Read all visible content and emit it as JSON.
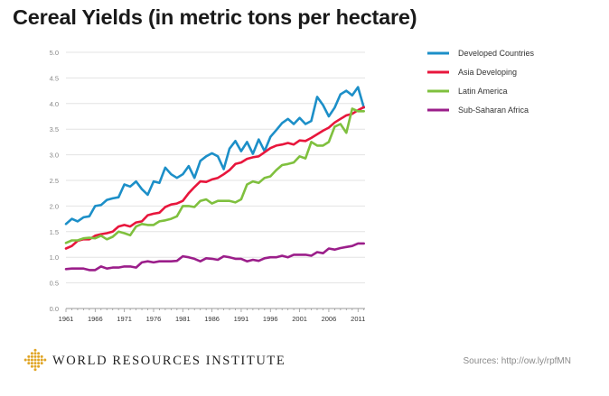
{
  "title": "Cereal Yields (in metric tons per hectare)",
  "footer": {
    "org_name": "WORLD RESOURCES INSTITUTE",
    "source": "Sources: http://ow.ly/rpfMN",
    "logo_icon": "wri-diamond-logo-icon",
    "logo_color": "#E0A526"
  },
  "chart_data": {
    "type": "line",
    "title": "Cereal Yields (in metric tons per hectare)",
    "xlabel": "",
    "ylabel": "",
    "x": [
      1961,
      1962,
      1963,
      1964,
      1965,
      1966,
      1967,
      1968,
      1969,
      1970,
      1971,
      1972,
      1973,
      1974,
      1975,
      1976,
      1977,
      1978,
      1979,
      1980,
      1981,
      1982,
      1983,
      1984,
      1985,
      1986,
      1987,
      1988,
      1989,
      1990,
      1991,
      1992,
      1993,
      1994,
      1995,
      1996,
      1997,
      1998,
      1999,
      2000,
      2001,
      2002,
      2003,
      2004,
      2005,
      2006,
      2007,
      2008,
      2009,
      2010,
      2011,
      2012
    ],
    "xticks": [
      1961,
      1966,
      1971,
      1976,
      1981,
      1986,
      1991,
      1996,
      2001,
      2006,
      2011
    ],
    "yticks": [
      "0.0",
      "0.5",
      "1.0",
      "1.5",
      "2.0",
      "2.5",
      "3.0",
      "3.5",
      "4.0",
      "4.5",
      "5.0"
    ],
    "xlim": [
      1961,
      2012.2
    ],
    "ylim": [
      0,
      5
    ],
    "grid": true,
    "legend_position": "top-right",
    "series": [
      {
        "name": "Developed Countries",
        "color": "#1C8FC8",
        "values": [
          1.65,
          1.75,
          1.7,
          1.78,
          1.8,
          2.0,
          2.02,
          2.12,
          2.15,
          2.17,
          2.42,
          2.38,
          2.48,
          2.33,
          2.22,
          2.48,
          2.45,
          2.75,
          2.62,
          2.55,
          2.62,
          2.78,
          2.55,
          2.88,
          2.97,
          3.03,
          2.97,
          2.72,
          3.12,
          3.27,
          3.07,
          3.25,
          3.02,
          3.3,
          3.07,
          3.35,
          3.48,
          3.62,
          3.7,
          3.6,
          3.72,
          3.6,
          3.66,
          4.13,
          3.97,
          3.75,
          3.92,
          4.18,
          4.25,
          4.16,
          4.32,
          3.92
        ]
      },
      {
        "name": "Asia Developing",
        "color": "#E8163C",
        "values": [
          1.17,
          1.22,
          1.32,
          1.35,
          1.35,
          1.42,
          1.45,
          1.47,
          1.5,
          1.6,
          1.63,
          1.6,
          1.68,
          1.7,
          1.82,
          1.85,
          1.87,
          1.98,
          2.03,
          2.05,
          2.1,
          2.25,
          2.37,
          2.48,
          2.47,
          2.52,
          2.55,
          2.62,
          2.7,
          2.82,
          2.85,
          2.92,
          2.95,
          2.97,
          3.05,
          3.13,
          3.18,
          3.2,
          3.23,
          3.2,
          3.28,
          3.27,
          3.33,
          3.4,
          3.47,
          3.53,
          3.63,
          3.7,
          3.77,
          3.8,
          3.87,
          3.93
        ]
      },
      {
        "name": "Latin America",
        "color": "#7FC03E",
        "values": [
          1.28,
          1.33,
          1.33,
          1.37,
          1.38,
          1.37,
          1.42,
          1.35,
          1.4,
          1.5,
          1.47,
          1.43,
          1.6,
          1.65,
          1.63,
          1.63,
          1.7,
          1.72,
          1.75,
          1.8,
          2.0,
          2.0,
          1.98,
          2.1,
          2.13,
          2.05,
          2.1,
          2.1,
          2.1,
          2.07,
          2.13,
          2.42,
          2.48,
          2.45,
          2.55,
          2.58,
          2.7,
          2.8,
          2.82,
          2.85,
          2.97,
          2.93,
          3.25,
          3.18,
          3.18,
          3.25,
          3.55,
          3.6,
          3.43,
          3.9,
          3.85,
          3.85
        ]
      },
      {
        "name": "Sub-Saharan Africa",
        "color": "#9B1E8A",
        "values": [
          0.77,
          0.78,
          0.78,
          0.78,
          0.75,
          0.75,
          0.82,
          0.78,
          0.8,
          0.8,
          0.82,
          0.82,
          0.8,
          0.9,
          0.92,
          0.9,
          0.92,
          0.92,
          0.92,
          0.93,
          1.02,
          1.0,
          0.97,
          0.92,
          0.98,
          0.97,
          0.95,
          1.02,
          1.0,
          0.97,
          0.97,
          0.92,
          0.95,
          0.93,
          0.98,
          1.0,
          1.0,
          1.03,
          1.0,
          1.05,
          1.05,
          1.05,
          1.03,
          1.1,
          1.08,
          1.17,
          1.15,
          1.18,
          1.2,
          1.22,
          1.27,
          1.27
        ]
      }
    ]
  }
}
